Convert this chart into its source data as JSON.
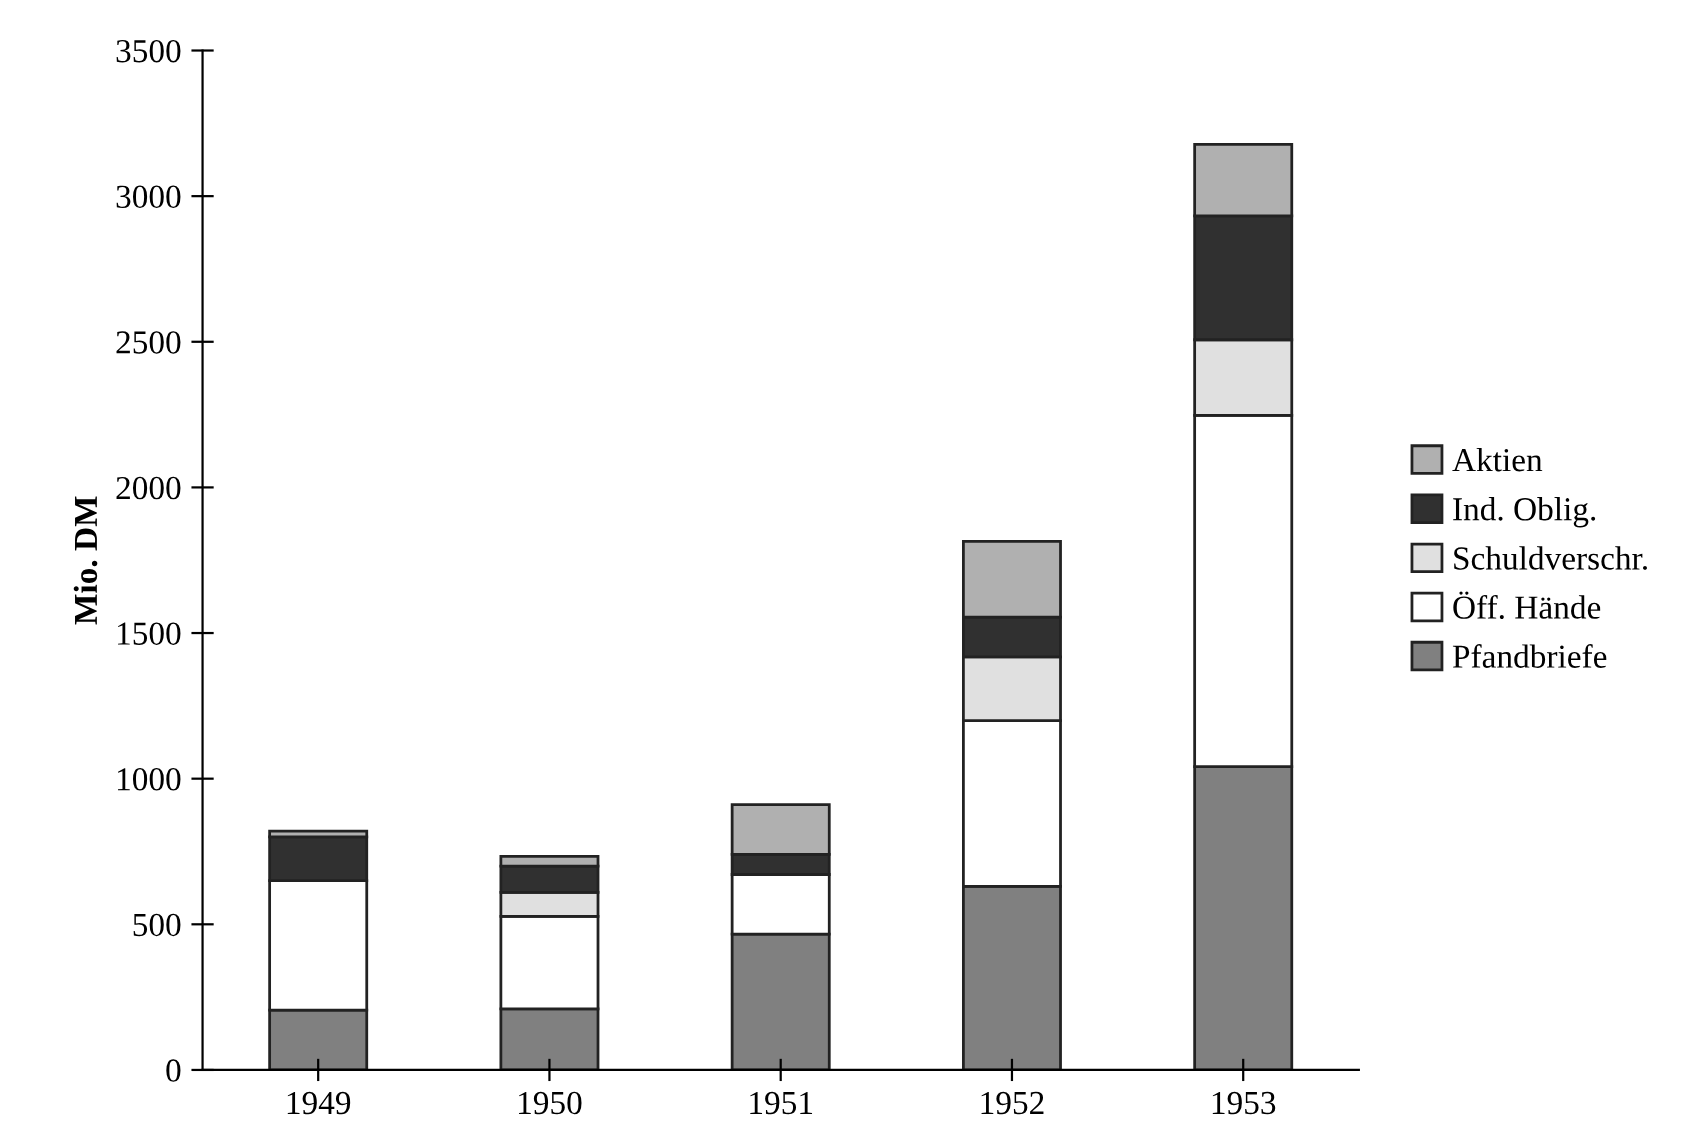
{
  "chart_data": {
    "type": "bar",
    "stacked": true,
    "ylabel": "Mio. DM",
    "categories": [
      "1949",
      "1950",
      "1951",
      "1952",
      "1953"
    ],
    "series": [
      {
        "name": "Pfandbriefe",
        "color": "#808080",
        "values": [
          205,
          210,
          466,
          630,
          1041
        ]
      },
      {
        "name": "Öff. Hände",
        "color": "#ffffff",
        "values": [
          445,
          317,
          205,
          569,
          1206
        ]
      },
      {
        "name": "Schuldverschr.",
        "color": "#e0e0e0",
        "values": [
          null,
          83,
          null,
          219,
          260
        ]
      },
      {
        "name": "Ind. Oblig.",
        "color": "#303030",
        "values": [
          150,
          90,
          69,
          137,
          425
        ]
      },
      {
        "name": "Aktien",
        "color": "#b0b0b0",
        "values": [
          20,
          33,
          171,
          260,
          246
        ]
      }
    ],
    "ylim": [
      0,
      3500
    ],
    "yticks": [
      0,
      500,
      1000,
      1500,
      2000,
      2500,
      3000,
      3500
    ],
    "grid": false,
    "legend": "right"
  }
}
